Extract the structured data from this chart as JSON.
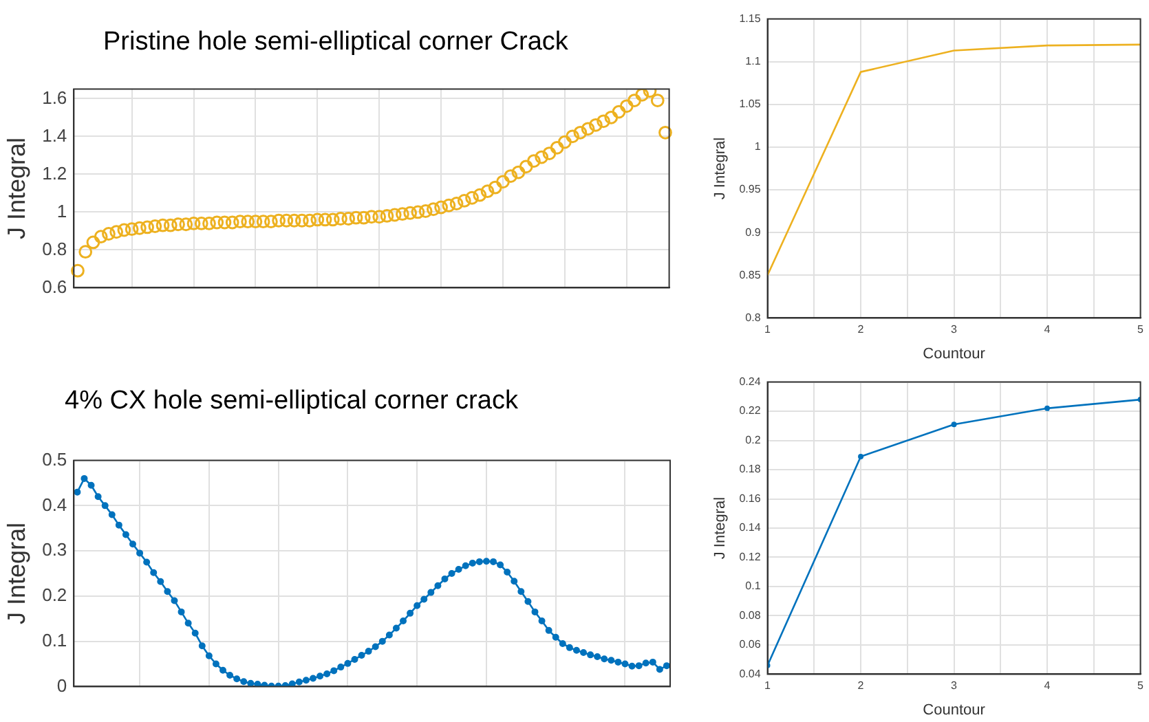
{
  "chart_data": [
    {
      "type": "scatter",
      "title": "Pristine hole semi-elliptical corner Crack",
      "ylabel": "J Integral",
      "marker": "circle",
      "grid": true,
      "tick_labels": "y",
      "ylim": [
        0.6,
        1.65
      ],
      "yticks": [
        0.6,
        0.8,
        1,
        1.2,
        1.4,
        1.6
      ],
      "categories": [
        null,
        null,
        null,
        null,
        null,
        null,
        null,
        null,
        null,
        null,
        null,
        null,
        null,
        null,
        null,
        null,
        null,
        null,
        null,
        null,
        null,
        null,
        null,
        null,
        null,
        null,
        null,
        null,
        null,
        null,
        null,
        null,
        null,
        null,
        null,
        null,
        null,
        null,
        null,
        null,
        null,
        null,
        null,
        null,
        null,
        null,
        null,
        null,
        null,
        null,
        null,
        null,
        null,
        null,
        null,
        null,
        null,
        null,
        null,
        null,
        null,
        null,
        null,
        null,
        null,
        null,
        null,
        null,
        null,
        null,
        null,
        null,
        null,
        null,
        null,
        null,
        null
      ],
      "series": [
        {
          "color": "#edb120",
          "values": [
            0.69,
            0.79,
            0.84,
            0.87,
            0.885,
            0.895,
            0.905,
            0.91,
            0.915,
            0.92,
            0.925,
            0.93,
            0.93,
            0.935,
            0.935,
            0.94,
            0.94,
            0.94,
            0.945,
            0.945,
            0.945,
            0.95,
            0.95,
            0.95,
            0.95,
            0.95,
            0.955,
            0.955,
            0.955,
            0.955,
            0.955,
            0.96,
            0.96,
            0.96,
            0.965,
            0.965,
            0.97,
            0.97,
            0.975,
            0.975,
            0.98,
            0.985,
            0.99,
            0.995,
            1.0,
            1.005,
            1.015,
            1.025,
            1.035,
            1.045,
            1.06,
            1.075,
            1.09,
            1.11,
            1.13,
            1.16,
            1.19,
            1.21,
            1.24,
            1.27,
            1.29,
            1.31,
            1.34,
            1.37,
            1.4,
            1.42,
            1.44,
            1.46,
            1.48,
            1.5,
            1.53,
            1.56,
            1.59,
            1.62,
            1.64,
            1.59,
            1.42
          ]
        }
      ]
    },
    {
      "type": "line",
      "xlabel": "Countour",
      "ylabel": "J Integral",
      "grid": true,
      "xlim": [
        1,
        5
      ],
      "xticks": [
        1,
        {
          "value": 1.5,
          "label": null
        },
        2,
        {
          "value": 2.5,
          "label": null
        },
        3,
        {
          "value": 3.5,
          "label": null
        },
        4,
        {
          "value": 4.5,
          "label": null
        },
        5
      ],
      "ylim": [
        0.8,
        1.15
      ],
      "yticks": [
        0.8,
        0.85,
        0.9,
        0.95,
        1,
        1.05,
        1.1,
        1.15
      ],
      "x": [
        1,
        2,
        3,
        4,
        5
      ],
      "series": [
        {
          "color": "#edb120",
          "values": [
            0.85,
            1.088,
            1.113,
            1.119,
            1.12
          ]
        }
      ]
    },
    {
      "type": "line",
      "title": "4% CX hole semi-elliptical corner crack",
      "ylabel": "J Integral",
      "marker": "circle",
      "grid": true,
      "tick_labels": "y",
      "ylim": [
        0,
        0.5
      ],
      "yticks": [
        0,
        0.1,
        0.2,
        0.3,
        0.4,
        0.5
      ],
      "categories": [
        null,
        null,
        null,
        null,
        null,
        null,
        null,
        null,
        null,
        null,
        null,
        null,
        null,
        null,
        null,
        null,
        null,
        null,
        null,
        null,
        null,
        null,
        null,
        null,
        null,
        null,
        null,
        null,
        null,
        null,
        null,
        null,
        null,
        null,
        null,
        null,
        null,
        null,
        null,
        null,
        null,
        null,
        null,
        null,
        null,
        null,
        null,
        null,
        null,
        null,
        null,
        null,
        null,
        null,
        null,
        null,
        null,
        null,
        null,
        null,
        null,
        null,
        null,
        null,
        null,
        null,
        null,
        null,
        null,
        null,
        null,
        null,
        null,
        null,
        null,
        null,
        null,
        null,
        null,
        null,
        null,
        null,
        null,
        null,
        null,
        null
      ],
      "series": [
        {
          "color": "#0072bd",
          "values": [
            0.43,
            0.46,
            0.445,
            0.42,
            0.4,
            0.38,
            0.357,
            0.336,
            0.315,
            0.295,
            0.275,
            0.252,
            0.232,
            0.21,
            0.19,
            0.165,
            0.14,
            0.118,
            0.09,
            0.068,
            0.05,
            0.036,
            0.025,
            0.017,
            0.011,
            0.007,
            0.005,
            0.003,
            0.001,
            0.001,
            0.002,
            0.006,
            0.01,
            0.014,
            0.018,
            0.023,
            0.028,
            0.035,
            0.043,
            0.051,
            0.06,
            0.069,
            0.078,
            0.088,
            0.1,
            0.114,
            0.129,
            0.145,
            0.162,
            0.179,
            0.193,
            0.208,
            0.223,
            0.238,
            0.25,
            0.259,
            0.267,
            0.273,
            0.276,
            0.277,
            0.276,
            0.269,
            0.253,
            0.233,
            0.21,
            0.188,
            0.165,
            0.145,
            0.124,
            0.109,
            0.095,
            0.086,
            0.08,
            0.075,
            0.07,
            0.066,
            0.061,
            0.058,
            0.054,
            0.05,
            0.045,
            0.046,
            0.052,
            0.054,
            0.038,
            0.046
          ]
        }
      ]
    },
    {
      "type": "line",
      "xlabel": "Countour",
      "ylabel": "J Integral",
      "marker": "circle",
      "grid": true,
      "xlim": [
        1,
        5
      ],
      "xticks": [
        1,
        {
          "value": 1.5,
          "label": null
        },
        2,
        {
          "value": 2.5,
          "label": null
        },
        3,
        {
          "value": 3.5,
          "label": null
        },
        4,
        {
          "value": 4.5,
          "label": null
        },
        5
      ],
      "ylim": [
        0.04,
        0.24
      ],
      "yticks": [
        0.04,
        0.06,
        0.08,
        0.1,
        0.12,
        0.14,
        0.16,
        0.18,
        0.2,
        0.22,
        0.24
      ],
      "x": [
        1,
        2,
        3,
        4,
        5
      ],
      "series": [
        {
          "color": "#0072bd",
          "values": [
            0.046,
            0.189,
            0.211,
            0.222,
            0.228
          ]
        }
      ]
    }
  ]
}
